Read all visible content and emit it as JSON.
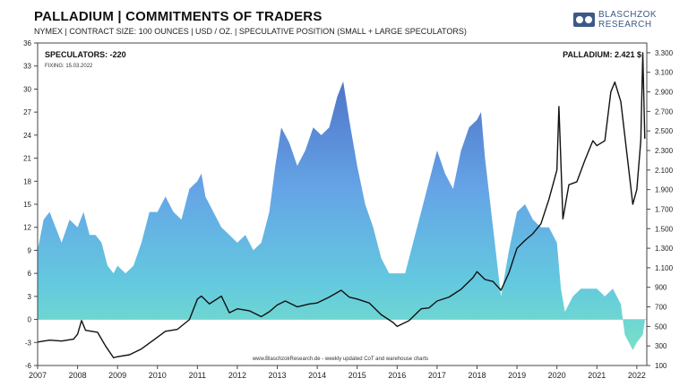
{
  "header": {
    "title": "PALLADIUM | COMMITMENTS OF TRADERS",
    "subtitle": "NYMEX | CONTRACT SIZE: 100 OUNCES | USD / OZ. | SPECULATIVE POSITION (SMALL + LARGE SPECULATORS)"
  },
  "logo": {
    "line1": "BLASCHZOK",
    "line2": "RESEARCH",
    "icon": "bull-bear-icon"
  },
  "chart_data": {
    "type": "area",
    "x_ticks": [
      "2007",
      "2008",
      "2009",
      "2010",
      "2011",
      "2012",
      "2013",
      "2014",
      "2015",
      "2016",
      "2017",
      "2018",
      "2019",
      "2020",
      "2021",
      "2022"
    ],
    "y_left": {
      "ticks": [
        36,
        33,
        30,
        27,
        24,
        21,
        18,
        15,
        12,
        9,
        6,
        3,
        0,
        -3,
        -6
      ],
      "ylim": [
        -6,
        36
      ]
    },
    "y_right": {
      "ticks": [
        "3.300",
        "3.100",
        "2.900",
        "2.700",
        "2.500",
        "2.300",
        "2.100",
        "1.900",
        "1.700",
        "1.500",
        "1.300",
        "1.100",
        "900",
        "700",
        "500",
        "300",
        "100"
      ],
      "ylim": [
        100,
        3400
      ]
    },
    "annotations": {
      "speculators": "SPECULATORS: -220",
      "fixing": "FIXING:  15.03.2022",
      "price": "PALLADIUM: 2.421 $",
      "footer": "www.BlaschzokResearch.de  -  weekly updated CoT and warehouse  charts"
    },
    "series": [
      {
        "values_kind": "speculative_position_thousands",
        "points": [
          [
            2007.0,
            9
          ],
          [
            2007.15,
            13
          ],
          [
            2007.3,
            14
          ],
          [
            2007.45,
            12
          ],
          [
            2007.6,
            10
          ],
          [
            2007.8,
            13
          ],
          [
            2008.0,
            12
          ],
          [
            2008.15,
            14
          ],
          [
            2008.3,
            11
          ],
          [
            2008.45,
            11
          ],
          [
            2008.6,
            10
          ],
          [
            2008.75,
            7
          ],
          [
            2008.9,
            6
          ],
          [
            2009.0,
            7
          ],
          [
            2009.2,
            6
          ],
          [
            2009.4,
            7
          ],
          [
            2009.6,
            10
          ],
          [
            2009.8,
            14
          ],
          [
            2010.0,
            14
          ],
          [
            2010.2,
            16
          ],
          [
            2010.4,
            14
          ],
          [
            2010.6,
            13
          ],
          [
            2010.8,
            17
          ],
          [
            2011.0,
            18
          ],
          [
            2011.1,
            19
          ],
          [
            2011.2,
            16
          ],
          [
            2011.4,
            14
          ],
          [
            2011.6,
            12
          ],
          [
            2011.8,
            11
          ],
          [
            2012.0,
            10
          ],
          [
            2012.2,
            11
          ],
          [
            2012.4,
            9
          ],
          [
            2012.6,
            10
          ],
          [
            2012.8,
            14
          ],
          [
            2012.95,
            20
          ],
          [
            2013.1,
            25
          ],
          [
            2013.3,
            23
          ],
          [
            2013.5,
            20
          ],
          [
            2013.7,
            22
          ],
          [
            2013.9,
            25
          ],
          [
            2014.1,
            24
          ],
          [
            2014.3,
            25
          ],
          [
            2014.5,
            29
          ],
          [
            2014.65,
            31
          ],
          [
            2014.8,
            26
          ],
          [
            2015.0,
            20
          ],
          [
            2015.2,
            15
          ],
          [
            2015.4,
            12
          ],
          [
            2015.6,
            8
          ],
          [
            2015.8,
            6
          ],
          [
            2016.0,
            6
          ],
          [
            2016.2,
            6
          ],
          [
            2016.4,
            10
          ],
          [
            2016.6,
            14
          ],
          [
            2016.8,
            18
          ],
          [
            2017.0,
            22
          ],
          [
            2017.2,
            19
          ],
          [
            2017.4,
            17
          ],
          [
            2017.6,
            22
          ],
          [
            2017.8,
            25
          ],
          [
            2018.0,
            26
          ],
          [
            2018.1,
            27
          ],
          [
            2018.2,
            21
          ],
          [
            2018.4,
            12
          ],
          [
            2018.6,
            3
          ],
          [
            2018.8,
            9
          ],
          [
            2019.0,
            14
          ],
          [
            2019.2,
            15
          ],
          [
            2019.4,
            13
          ],
          [
            2019.6,
            12
          ],
          [
            2019.8,
            12
          ],
          [
            2020.0,
            10
          ],
          [
            2020.1,
            4
          ],
          [
            2020.2,
            1
          ],
          [
            2020.4,
            3
          ],
          [
            2020.6,
            4
          ],
          [
            2020.8,
            4
          ],
          [
            2021.0,
            4
          ],
          [
            2021.2,
            3
          ],
          [
            2021.4,
            4
          ],
          [
            2021.6,
            2
          ],
          [
            2021.7,
            -2
          ],
          [
            2021.8,
            -3
          ],
          [
            2021.9,
            -4
          ],
          [
            2022.0,
            -3
          ],
          [
            2022.15,
            -2
          ],
          [
            2022.2,
            -0.2
          ]
        ]
      },
      {
        "values_kind": "palladium_price_usd",
        "points": [
          [
            2007.0,
            340
          ],
          [
            2007.3,
            360
          ],
          [
            2007.6,
            350
          ],
          [
            2007.9,
            370
          ],
          [
            2008.0,
            420
          ],
          [
            2008.1,
            560
          ],
          [
            2008.2,
            460
          ],
          [
            2008.5,
            440
          ],
          [
            2008.7,
            300
          ],
          [
            2008.9,
            180
          ],
          [
            2009.0,
            190
          ],
          [
            2009.3,
            210
          ],
          [
            2009.6,
            270
          ],
          [
            2009.9,
            360
          ],
          [
            2010.2,
            450
          ],
          [
            2010.5,
            470
          ],
          [
            2010.8,
            570
          ],
          [
            2011.0,
            780
          ],
          [
            2011.1,
            810
          ],
          [
            2011.3,
            730
          ],
          [
            2011.6,
            810
          ],
          [
            2011.8,
            640
          ],
          [
            2012.0,
            680
          ],
          [
            2012.3,
            660
          ],
          [
            2012.6,
            600
          ],
          [
            2012.8,
            650
          ],
          [
            2013.0,
            720
          ],
          [
            2013.2,
            760
          ],
          [
            2013.5,
            700
          ],
          [
            2013.8,
            730
          ],
          [
            2014.0,
            740
          ],
          [
            2014.3,
            800
          ],
          [
            2014.6,
            870
          ],
          [
            2014.8,
            800
          ],
          [
            2015.0,
            780
          ],
          [
            2015.3,
            740
          ],
          [
            2015.6,
            620
          ],
          [
            2015.9,
            540
          ],
          [
            2016.0,
            500
          ],
          [
            2016.3,
            560
          ],
          [
            2016.6,
            680
          ],
          [
            2016.8,
            690
          ],
          [
            2017.0,
            760
          ],
          [
            2017.3,
            800
          ],
          [
            2017.6,
            880
          ],
          [
            2017.9,
            1000
          ],
          [
            2018.0,
            1060
          ],
          [
            2018.2,
            980
          ],
          [
            2018.4,
            960
          ],
          [
            2018.6,
            870
          ],
          [
            2018.8,
            1050
          ],
          [
            2019.0,
            1300
          ],
          [
            2019.2,
            1380
          ],
          [
            2019.4,
            1450
          ],
          [
            2019.6,
            1550
          ],
          [
            2019.8,
            1800
          ],
          [
            2020.0,
            2100
          ],
          [
            2020.05,
            2750
          ],
          [
            2020.15,
            1600
          ],
          [
            2020.3,
            1950
          ],
          [
            2020.5,
            1980
          ],
          [
            2020.7,
            2200
          ],
          [
            2020.9,
            2400
          ],
          [
            2021.0,
            2350
          ],
          [
            2021.2,
            2400
          ],
          [
            2021.35,
            2900
          ],
          [
            2021.45,
            3000
          ],
          [
            2021.6,
            2800
          ],
          [
            2021.8,
            2100
          ],
          [
            2021.9,
            1750
          ],
          [
            2022.0,
            1900
          ],
          [
            2022.1,
            2400
          ],
          [
            2022.15,
            3300
          ],
          [
            2022.2,
            2421
          ]
        ]
      }
    ]
  }
}
